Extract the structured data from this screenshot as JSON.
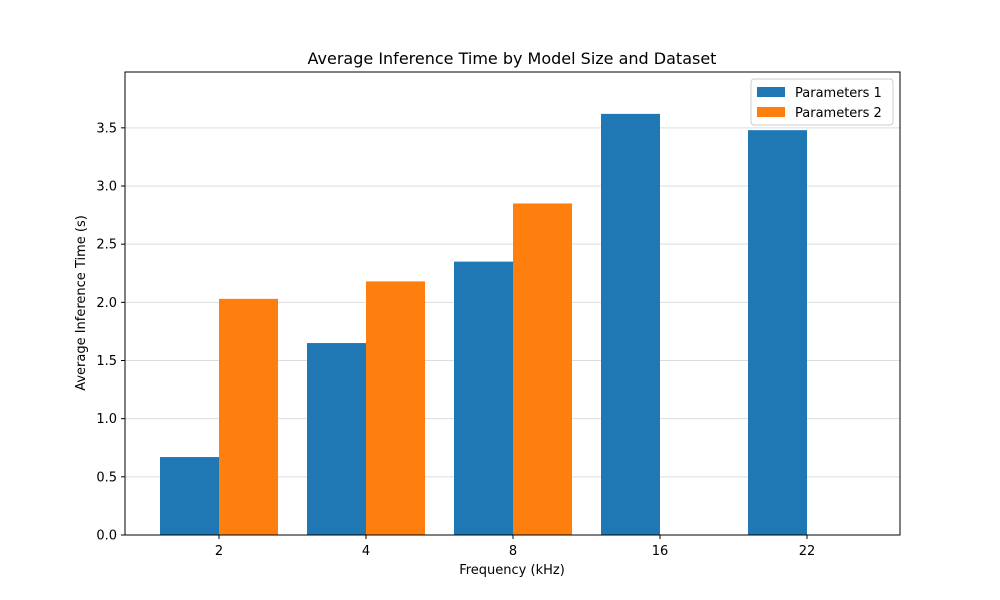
{
  "chart_data": {
    "type": "bar",
    "title": "Average Inference Time by Model Size and Dataset",
    "xlabel": "Frequency (kHz)",
    "ylabel": "Average Inference Time (s)",
    "categories": [
      "2",
      "4",
      "8",
      "16",
      "22"
    ],
    "series": [
      {
        "name": "Parameters 1",
        "color": "#1f77b4",
        "values": [
          0.67,
          1.65,
          2.35,
          3.62,
          3.48
        ]
      },
      {
        "name": "Parameters 2",
        "color": "#ff7f0e",
        "values": [
          2.03,
          2.18,
          2.85,
          null,
          null
        ]
      }
    ],
    "ylim": [
      0,
      3.98
    ],
    "yticks": [
      0.0,
      0.5,
      1.0,
      1.5,
      2.0,
      2.5,
      3.0,
      3.5
    ],
    "ytick_labels": [
      "0.0",
      "0.5",
      "1.0",
      "1.5",
      "2.0",
      "2.5",
      "3.0",
      "3.5"
    ],
    "grid": "y",
    "legend_position": "top-right"
  }
}
